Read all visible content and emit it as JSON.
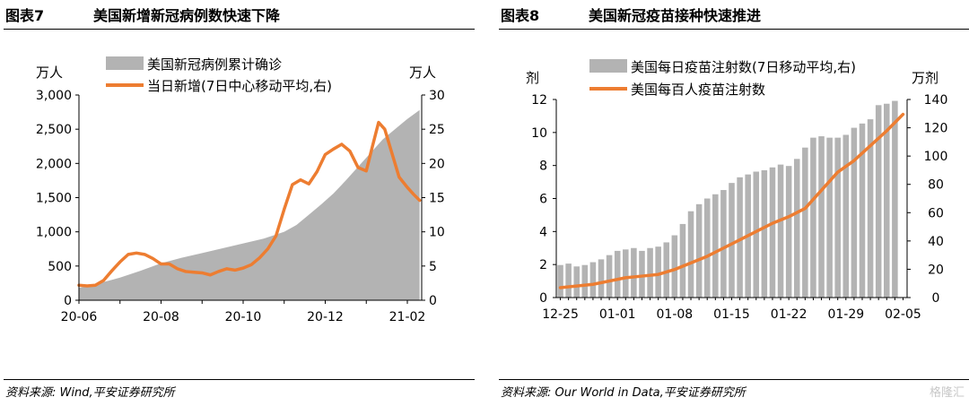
{
  "left": {
    "header_number": "图表7",
    "header_title": "美国新增新冠病例数快速下降",
    "source": "资料来源: Wind,平安证券研究所",
    "chart_data": {
      "type": "area",
      "yunit_left": "万人",
      "yunit_right": "万人",
      "ylim_left": [
        0,
        3000
      ],
      "ylim_right": [
        0,
        30
      ],
      "yticks_left": [
        "0",
        "500",
        "1,000",
        "1,500",
        "2,000",
        "2,500",
        "3,000"
      ],
      "yticks_right": [
        "0",
        "5",
        "10",
        "15",
        "20",
        "25",
        "30"
      ],
      "xticks": [
        "20-06",
        "20-08",
        "20-10",
        "20-12",
        "21-02"
      ],
      "xtick_months": [
        0,
        2,
        4,
        6,
        8
      ],
      "xlim_months": [
        0,
        8.35
      ],
      "series": [
        {
          "name": "美国新冠病例累计确诊",
          "axis": "left",
          "color": "#b3b3b3",
          "x_months": [
            0,
            0.5,
            1.0,
            1.5,
            2.0,
            2.5,
            3.0,
            3.5,
            4.0,
            4.5,
            5.0,
            5.3,
            5.6,
            5.9,
            6.2,
            6.5,
            6.8,
            7.1,
            7.4,
            7.7,
            8.0,
            8.3
          ],
          "values": [
            180,
            250,
            330,
            430,
            540,
            620,
            690,
            760,
            830,
            900,
            1000,
            1100,
            1250,
            1400,
            1560,
            1750,
            1950,
            2150,
            2350,
            2500,
            2650,
            2780
          ]
        },
        {
          "name": "当日新增(7日中心移动平均,右)",
          "axis": "right",
          "color": "#ed7d31",
          "x_months": [
            0,
            0.2,
            0.4,
            0.6,
            0.8,
            1.0,
            1.2,
            1.4,
            1.6,
            1.8,
            2.0,
            2.2,
            2.4,
            2.6,
            2.8,
            3.0,
            3.2,
            3.4,
            3.6,
            3.8,
            4.0,
            4.2,
            4.4,
            4.6,
            4.8,
            5.0,
            5.2,
            5.4,
            5.6,
            5.8,
            6.0,
            6.2,
            6.4,
            6.6,
            6.8,
            7.0,
            7.15,
            7.3,
            7.45,
            7.6,
            7.8,
            8.0,
            8.15,
            8.3
          ],
          "values": [
            2.2,
            2.1,
            2.2,
            2.9,
            4.3,
            5.6,
            6.7,
            6.9,
            6.7,
            6.1,
            5.3,
            5.3,
            4.6,
            4.2,
            4.1,
            4.0,
            3.7,
            4.2,
            4.6,
            4.4,
            4.7,
            5.2,
            6.2,
            7.5,
            9.4,
            13.3,
            16.9,
            17.6,
            17.0,
            18.8,
            21.3,
            22.1,
            22.8,
            21.8,
            19.4,
            18.9,
            22.5,
            26.0,
            25.0,
            22.0,
            18.0,
            16.5,
            15.5,
            14.6
          ]
        }
      ]
    }
  },
  "right": {
    "header_number": "图表8",
    "header_title": "美国新冠疫苗接种快速推进",
    "source": "资料来源: Our World in Data,平安证券研究所",
    "watermark": "格隆汇",
    "chart_data": {
      "type": "bar",
      "yunit_left": "剂",
      "yunit_right": "万剂",
      "ylim_left": [
        0,
        12
      ],
      "ylim_right": [
        0,
        140
      ],
      "yticks_left": [
        "0",
        "2",
        "4",
        "6",
        "8",
        "10",
        "12"
      ],
      "yticks_right": [
        "0",
        "20",
        "40",
        "60",
        "80",
        "100",
        "120",
        "140"
      ],
      "xticks": [
        "12-25",
        "01-01",
        "01-08",
        "01-15",
        "01-22",
        "01-29",
        "02-05"
      ],
      "xtick_days": [
        0,
        7,
        14,
        21,
        28,
        35,
        42
      ],
      "xlim_days": [
        -0.5,
        42.5
      ],
      "series": [
        {
          "name": "美国每日疫苗注射数(7日移动平均,右)",
          "axis": "right",
          "color": "#b3b3b3",
          "days": [
            0,
            1,
            2,
            3,
            4,
            5,
            6,
            7,
            8,
            9,
            10,
            11,
            12,
            13,
            14,
            15,
            16,
            17,
            18,
            19,
            20,
            21,
            22,
            23,
            24,
            25,
            26,
            27,
            28,
            29,
            30,
            31,
            32,
            33,
            34,
            35,
            36,
            37,
            38,
            39,
            40,
            41
          ],
          "values": [
            23,
            24,
            22,
            23,
            25,
            27,
            30,
            33,
            34,
            35,
            33,
            35,
            36,
            39,
            44,
            52,
            61,
            66,
            70,
            73,
            76,
            81,
            85,
            87,
            89,
            90,
            92,
            94,
            93,
            98,
            106,
            113,
            114,
            113,
            113,
            115,
            120,
            123,
            126,
            136,
            137,
            139
          ]
        },
        {
          "name": "美国每百人疫苗注射数",
          "axis": "left",
          "color": "#ed7d31",
          "days": [
            0,
            2,
            4,
            6,
            8,
            10,
            12,
            14,
            16,
            18,
            20,
            22,
            24,
            26,
            28,
            30,
            32,
            34,
            36,
            38,
            40,
            42
          ],
          "values": [
            0.6,
            0.7,
            0.8,
            1.0,
            1.2,
            1.3,
            1.4,
            1.7,
            2.1,
            2.5,
            3.0,
            3.5,
            4.0,
            4.5,
            4.9,
            5.4,
            6.5,
            7.6,
            8.3,
            9.2,
            10.1,
            11.1
          ]
        }
      ]
    }
  }
}
